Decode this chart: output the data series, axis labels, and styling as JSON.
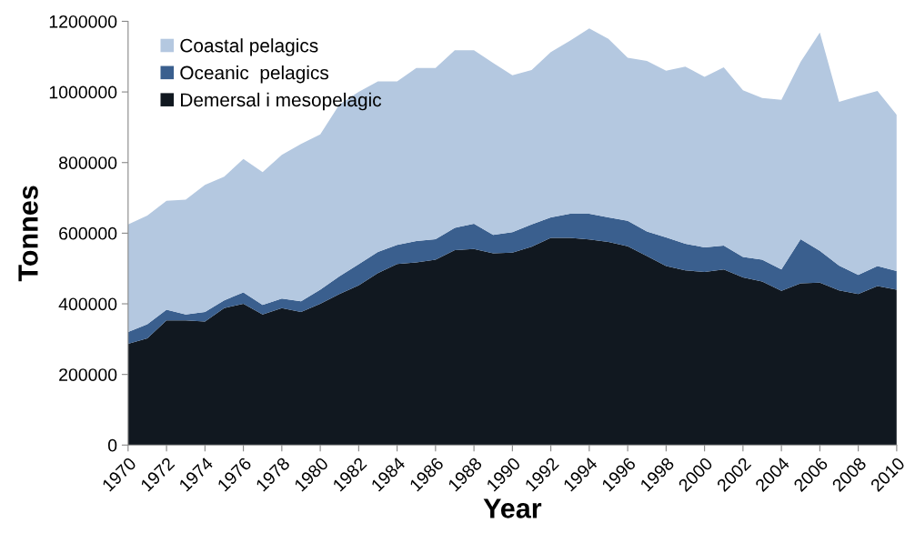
{
  "chart_data": {
    "type": "area",
    "stacked": true,
    "xlabel": "Year",
    "ylabel": "Tonnes",
    "x": [
      1970,
      1971,
      1972,
      1973,
      1974,
      1975,
      1976,
      1977,
      1978,
      1979,
      1980,
      1981,
      1982,
      1983,
      1984,
      1985,
      1986,
      1987,
      1988,
      1989,
      1990,
      1991,
      1992,
      1993,
      1994,
      1995,
      1996,
      1997,
      1998,
      1999,
      2000,
      2001,
      2002,
      2003,
      2004,
      2005,
      2006,
      2007,
      2008,
      2009,
      2010
    ],
    "series": [
      {
        "name": "Demersal i mesopelagic",
        "color": "#111820",
        "values": [
          287000,
          302000,
          353000,
          353000,
          350000,
          388000,
          400000,
          370000,
          388000,
          377000,
          400000,
          428000,
          452000,
          487000,
          513000,
          517000,
          525000,
          552000,
          555000,
          543000,
          545000,
          562000,
          587000,
          587000,
          582000,
          575000,
          563000,
          535000,
          507000,
          495000,
          490000,
          497000,
          475000,
          463000,
          437000,
          458000,
          460000,
          438000,
          428000,
          450000,
          440000
        ]
      },
      {
        "name": "Oceanic  pelagics",
        "color": "#3a5f8e",
        "values": [
          33000,
          40000,
          30000,
          17000,
          27000,
          22000,
          32000,
          27000,
          27000,
          30000,
          40000,
          50000,
          60000,
          60000,
          54000,
          61000,
          58000,
          63000,
          72000,
          52000,
          58000,
          63000,
          58000,
          68000,
          73000,
          70000,
          72000,
          70000,
          81000,
          75000,
          70000,
          68000,
          58000,
          62000,
          60000,
          125000,
          90000,
          70000,
          54000,
          57000,
          53000
        ]
      },
      {
        "name": "Coastal pelagics",
        "color": "#b4c8e0",
        "values": [
          305000,
          308000,
          309000,
          325000,
          360000,
          350000,
          378000,
          376000,
          407000,
          446000,
          440000,
          487000,
          488000,
          483000,
          463000,
          490000,
          485000,
          503000,
          491000,
          487000,
          444000,
          437000,
          468000,
          490000,
          525000,
          505000,
          462000,
          483000,
          472000,
          502000,
          483000,
          505000,
          472000,
          458000,
          481000,
          502000,
          618000,
          464000,
          506000,
          496000,
          442000
        ]
      }
    ],
    "xlim": [
      1970,
      2010
    ],
    "xticks": [
      1970,
      1972,
      1974,
      1976,
      1978,
      1980,
      1982,
      1984,
      1986,
      1988,
      1990,
      1992,
      1994,
      1996,
      1998,
      2000,
      2002,
      2004,
      2006,
      2008,
      2010
    ],
    "ylim": [
      0,
      1200000
    ],
    "yticks": [
      0,
      200000,
      400000,
      600000,
      800000,
      1000000,
      1200000
    ],
    "grid": false,
    "legend": "top left"
  }
}
